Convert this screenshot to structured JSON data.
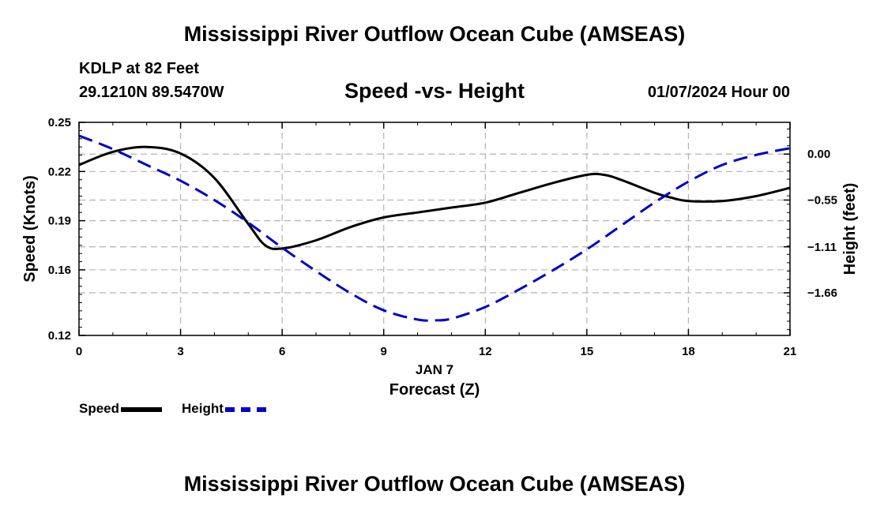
{
  "header": {
    "title": "Mississippi River Outflow Ocean Cube (AMSEAS)",
    "station": "KDLP at 82 Feet",
    "coords": "29.1210N  89.5470W",
    "subtitle": "Speed -vs- Height",
    "datetime": "01/07/2024 Hour 00"
  },
  "footer": {
    "title": "Mississippi River Outflow Ocean Cube (AMSEAS)"
  },
  "legend": {
    "speed_label": "Speed",
    "height_label": "Height"
  },
  "chart_data": {
    "type": "line",
    "title": "Speed -vs- Height",
    "xlabel": "Forecast (Z)",
    "x_sublabel": "JAN 7",
    "ylabel": "Speed (Knots)",
    "y2label": "Height (feet)",
    "xlim": [
      0,
      21
    ],
    "ylim": [
      0.12,
      0.25
    ],
    "y2lim": [
      -2.17,
      0.38
    ],
    "x_ticks": [
      0,
      3,
      6,
      9,
      12,
      15,
      18,
      21
    ],
    "y_ticks": [
      0.12,
      0.16,
      0.19,
      0.22,
      0.25
    ],
    "y_tick_labels": [
      "0.12",
      "0.16",
      "0.19",
      "0.22",
      "0.25"
    ],
    "y2_ticks": [
      0.0,
      -0.55,
      -1.11,
      -1.66
    ],
    "y2_tick_labels": [
      "0.00",
      "−0.55",
      "−1.11",
      "−1.66"
    ],
    "grid": true,
    "colors": {
      "speed": "#000000",
      "height": "#0000cc",
      "grid": "#b4b4b4"
    },
    "series": [
      {
        "name": "Speed",
        "axis": "left",
        "style": "solid",
        "x": [
          0,
          1,
          2,
          3,
          4,
          5,
          5.5,
          6,
          7,
          8,
          9,
          10,
          11,
          12,
          13,
          14,
          15,
          15.5,
          16,
          17,
          17.5,
          18,
          19,
          20,
          21
        ],
        "values": [
          0.224,
          0.232,
          0.235,
          0.231,
          0.216,
          0.188,
          0.175,
          0.173,
          0.178,
          0.186,
          0.192,
          0.195,
          0.198,
          0.201,
          0.207,
          0.213,
          0.218,
          0.218,
          0.215,
          0.207,
          0.204,
          0.202,
          0.202,
          0.205,
          0.21
        ]
      },
      {
        "name": "Height",
        "axis": "right",
        "style": "dashed",
        "x": [
          0,
          1,
          2,
          3,
          4,
          5,
          6,
          7,
          8,
          9,
          10,
          10.5,
          11,
          12,
          13,
          14,
          15,
          16,
          17,
          18,
          19,
          20,
          21
        ],
        "values": [
          0.22,
          0.06,
          -0.13,
          -0.32,
          -0.55,
          -0.82,
          -1.12,
          -1.4,
          -1.66,
          -1.87,
          -1.98,
          -1.99,
          -1.97,
          -1.83,
          -1.62,
          -1.39,
          -1.14,
          -0.86,
          -0.58,
          -0.33,
          -0.13,
          -0.01,
          0.07
        ]
      }
    ]
  }
}
